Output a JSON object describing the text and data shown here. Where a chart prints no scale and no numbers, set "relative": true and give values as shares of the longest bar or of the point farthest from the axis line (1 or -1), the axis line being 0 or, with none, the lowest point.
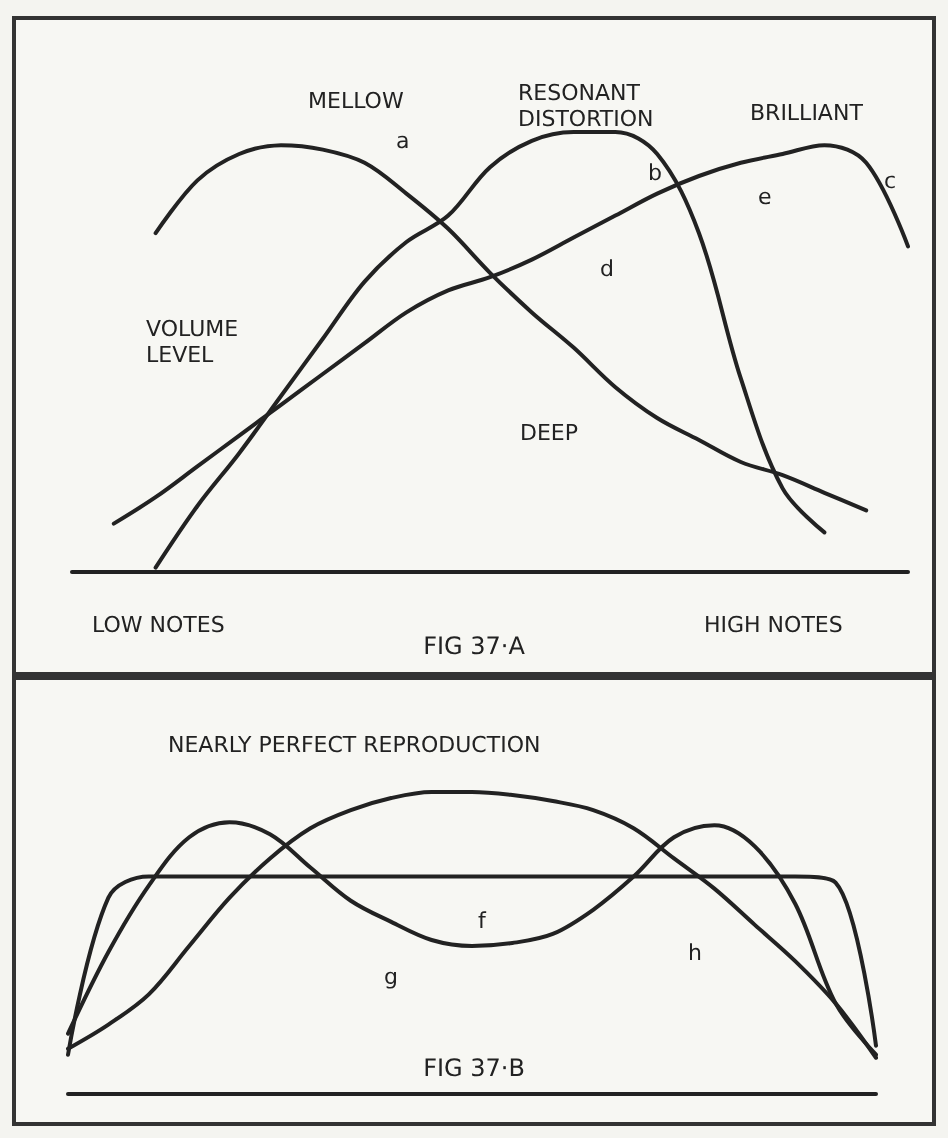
{
  "chart_data": [
    {
      "type": "line",
      "title": "FIG 37·A",
      "relative": true,
      "grid": false,
      "marker": "none",
      "line_style": "solid",
      "categories": [
        null,
        null,
        null,
        null,
        null,
        null,
        null,
        null,
        null,
        null,
        null,
        null,
        null,
        null,
        null,
        null,
        null,
        null,
        null,
        null,
        null
      ],
      "series": [
        {
          "color": "#222222",
          "values": [
            null,
            null,
            0.77,
            0.89,
            0.95,
            0.97,
            0.96,
            0.93,
            0.86,
            0.78,
            0.68,
            0.59,
            0.51,
            0.42,
            0.35,
            0.3,
            0.25,
            0.22,
            0.18,
            0.14,
            null
          ]
        },
        {
          "color": "#222222",
          "values": [
            null,
            null,
            0.01,
            0.15,
            0.27,
            0.4,
            0.53,
            0.66,
            0.75,
            0.81,
            0.92,
            0.98,
            1.0,
            1.0,
            0.95,
            0.77,
            0.44,
            0.19,
            0.09,
            null,
            null
          ]
        },
        {
          "color": "#222222",
          "values": [
            null,
            0.11,
            0.17,
            0.24,
            0.31,
            0.38,
            0.45,
            0.52,
            0.59,
            0.64,
            0.67,
            0.71,
            0.76,
            0.81,
            0.86,
            0.9,
            0.93,
            0.95,
            0.97,
            0.93,
            0.74
          ]
        }
      ],
      "annotations": [
        "MELLOW",
        "RESONANT DISTORTION",
        "BRILLIANT",
        "a",
        "b",
        "c",
        "d",
        "e",
        "DEEP",
        "VOLUME LEVEL",
        "LOW NOTES",
        "HIGH NOTES"
      ]
    },
    {
      "type": "line",
      "title": "FIG 37·B",
      "relative": true,
      "grid": false,
      "marker": "none",
      "line_style": "solid",
      "categories": [
        null,
        null,
        null,
        null,
        null,
        null,
        null,
        null,
        null,
        null,
        null,
        null,
        null,
        null,
        null,
        null,
        null,
        null,
        null,
        null,
        null
      ],
      "series": [
        {
          "color": "#222222",
          "values": [
            0.13,
            0.65,
            0.72,
            0.72,
            0.72,
            0.72,
            0.72,
            0.72,
            0.72,
            0.72,
            0.72,
            0.72,
            0.72,
            0.72,
            0.72,
            0.72,
            0.72,
            0.72,
            0.72,
            0.7,
            0.16
          ]
        },
        {
          "color": "#222222",
          "values": [
            0.2,
            0.47,
            0.69,
            0.85,
            0.9,
            0.86,
            0.75,
            0.64,
            0.57,
            0.51,
            0.49,
            0.5,
            0.53,
            0.61,
            0.72,
            0.85,
            0.89,
            0.82,
            0.63,
            0.3,
            0.13
          ]
        },
        {
          "color": "#222222",
          "values": [
            0.15,
            0.23,
            0.33,
            0.49,
            0.65,
            0.78,
            0.88,
            0.94,
            0.98,
            1.0,
            1.0,
            0.99,
            0.97,
            0.94,
            0.88,
            0.78,
            0.68,
            0.56,
            0.44,
            0.3,
            0.12
          ]
        }
      ],
      "annotations": [
        "NEARLY PERFECT REPRODUCTION",
        "f",
        "g",
        "h"
      ]
    }
  ]
}
